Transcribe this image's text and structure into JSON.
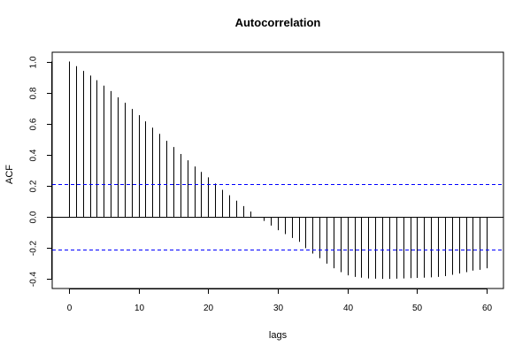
{
  "chart_data": {
    "type": "bar",
    "title": "Autocorrelation",
    "xlabel": "lags",
    "ylabel": "ACF",
    "xlim": [
      -2.4,
      62.4
    ],
    "ylim": [
      -0.46,
      1.06
    ],
    "x_ticks": [
      0,
      10,
      20,
      30,
      40,
      50,
      60
    ],
    "y_ticks": [
      -0.4,
      -0.2,
      0.0,
      0.2,
      0.4,
      0.6,
      0.8,
      1.0
    ],
    "confidence_bounds": [
      0.212,
      -0.212
    ],
    "confidence_color": "#0000ff",
    "bar_color": "#000000",
    "zero_line": true,
    "grid": false,
    "lags": [
      0,
      1,
      2,
      3,
      4,
      5,
      6,
      7,
      8,
      9,
      10,
      11,
      12,
      13,
      14,
      15,
      16,
      17,
      18,
      19,
      20,
      21,
      22,
      23,
      24,
      25,
      26,
      27,
      28,
      29,
      30,
      31,
      32,
      33,
      34,
      35,
      36,
      37,
      38,
      39,
      40,
      41,
      42,
      43,
      44,
      45,
      46,
      47,
      48,
      49,
      50,
      51,
      52,
      53,
      54,
      55,
      56,
      57,
      58,
      59,
      60
    ],
    "acf": [
      1.0,
      0.97,
      0.94,
      0.91,
      0.88,
      0.845,
      0.81,
      0.77,
      0.735,
      0.695,
      0.655,
      0.615,
      0.575,
      0.535,
      0.49,
      0.45,
      0.405,
      0.365,
      0.325,
      0.29,
      0.255,
      0.215,
      0.175,
      0.14,
      0.105,
      0.07,
      0.035,
      0.0,
      -0.025,
      -0.055,
      -0.085,
      -0.11,
      -0.135,
      -0.16,
      -0.2,
      -0.235,
      -0.265,
      -0.3,
      -0.33,
      -0.355,
      -0.375,
      -0.385,
      -0.39,
      -0.395,
      -0.397,
      -0.398,
      -0.398,
      -0.397,
      -0.395,
      -0.393,
      -0.392,
      -0.39,
      -0.388,
      -0.385,
      -0.38,
      -0.372,
      -0.363,
      -0.355,
      -0.345,
      -0.34,
      -0.33
    ]
  }
}
